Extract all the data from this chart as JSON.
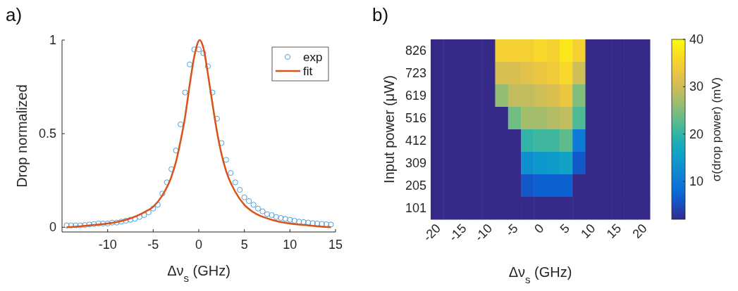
{
  "chart_data": [
    {
      "type": "scatter",
      "title": "a)",
      "xlabel": "Δν$_{s}$ (GHz)",
      "ylabel": "Drop normalized",
      "xlim": [
        -15,
        15
      ],
      "xticks": [
        -10,
        -5,
        0,
        5,
        10,
        15
      ],
      "ylim": [
        -0.025,
        1
      ],
      "yticks": [
        0,
        0.5,
        1
      ],
      "legend": "top right",
      "series": [
        {
          "name": "exp",
          "type": "scatter",
          "marker": "circle",
          "color": "#4d9fdc",
          "x": [
            -14.5,
            -14,
            -13.5,
            -13,
            -12.5,
            -12,
            -11.5,
            -11,
            -10.5,
            -10,
            -9.5,
            -9,
            -8.5,
            -8,
            -7.5,
            -7,
            -6.5,
            -6,
            -5.5,
            -5,
            -4.5,
            -4,
            -3.5,
            -3,
            -2.5,
            -2,
            -1.5,
            -1,
            -0.5,
            0,
            0.5,
            1,
            1.5,
            2,
            2.5,
            3,
            3.5,
            4,
            4.5,
            5,
            5.5,
            6,
            6.5,
            7,
            7.5,
            8,
            8.5,
            9,
            9.5,
            10,
            10.5,
            11,
            11.5,
            12,
            12.5,
            13,
            13.5,
            14,
            14.5
          ],
          "values": [
            0.01,
            0.01,
            0.01,
            0.01,
            0.012,
            0.015,
            0.017,
            0.02,
            0.02,
            0.02,
            0.025,
            0.025,
            0.03,
            0.035,
            0.04,
            0.045,
            0.055,
            0.065,
            0.08,
            0.1,
            0.12,
            0.18,
            0.24,
            0.31,
            0.41,
            0.55,
            0.72,
            0.87,
            0.95,
            0.95,
            0.93,
            0.86,
            0.72,
            0.58,
            0.45,
            0.36,
            0.29,
            0.24,
            0.2,
            0.16,
            0.14,
            0.12,
            0.1,
            0.085,
            0.07,
            0.065,
            0.055,
            0.05,
            0.045,
            0.04,
            0.035,
            0.03,
            0.028,
            0.025,
            0.022,
            0.02,
            0.018,
            0.016,
            0.015
          ]
        },
        {
          "name": "fit",
          "type": "line",
          "marker": "none",
          "color": "#d95319",
          "x": [
            -14.5,
            -12,
            -10,
            -8,
            -6,
            -5,
            -4,
            -3,
            -2.5,
            -2,
            -1.5,
            -1,
            -0.5,
            0.1,
            0.5,
            1,
            1.5,
            2,
            2.5,
            3,
            4,
            5,
            6,
            8,
            10,
            12,
            14.5
          ],
          "values": [
            0,
            0.01,
            0.02,
            0.04,
            0.08,
            0.11,
            0.17,
            0.27,
            0.35,
            0.46,
            0.59,
            0.76,
            0.91,
            1,
            0.96,
            0.82,
            0.66,
            0.51,
            0.39,
            0.3,
            0.19,
            0.12,
            0.08,
            0.04,
            0.02,
            0.01,
            0
          ]
        }
      ]
    },
    {
      "type": "heatmap",
      "title": "b)",
      "xlabel": "Δν$_{s}$ (GHz)",
      "ylabel": "Input power (μW)",
      "clabel": "σ(drop power) (mV)",
      "clim": [
        2,
        40
      ],
      "cticks": [
        10,
        20,
        30,
        40
      ],
      "categories": [
        "-20",
        null,
        "-15",
        null,
        "-10",
        null,
        "-5",
        null,
        "0",
        null,
        "5",
        null,
        "10",
        null,
        "15",
        null,
        "20"
      ],
      "y_categories": [
        "826",
        "723",
        "619",
        "516",
        "412",
        "309",
        "205",
        "101"
      ],
      "cells": [
        [
          2,
          2,
          2,
          2,
          2,
          35,
          35,
          35,
          36,
          35,
          38,
          35,
          2,
          2,
          2,
          2,
          2
        ],
        [
          2,
          2,
          2,
          2,
          2,
          31,
          31,
          32,
          33,
          34,
          36,
          30,
          2,
          2,
          2,
          2,
          2
        ],
        [
          2,
          2,
          2,
          2,
          2,
          26,
          29,
          29,
          30,
          31,
          33,
          25,
          2,
          2,
          2,
          2,
          2
        ],
        [
          2,
          2,
          2,
          2,
          2,
          2,
          24,
          27,
          27,
          28,
          29,
          22,
          2,
          2,
          2,
          2,
          2
        ],
        [
          2,
          2,
          2,
          2,
          2,
          2,
          2,
          20,
          21,
          21,
          23,
          10,
          2,
          2,
          2,
          2,
          2
        ],
        [
          2,
          2,
          2,
          2,
          2,
          2,
          2,
          13,
          14,
          15,
          16,
          6,
          2,
          2,
          2,
          2,
          2
        ],
        [
          2,
          2,
          2,
          2,
          2,
          2,
          2,
          6,
          7,
          7,
          7,
          2,
          2,
          2,
          2,
          2,
          2
        ],
        [
          2,
          2,
          2,
          2,
          2,
          2,
          2,
          2,
          2,
          2,
          2,
          2,
          2,
          2,
          2,
          2,
          2
        ]
      ]
    }
  ]
}
